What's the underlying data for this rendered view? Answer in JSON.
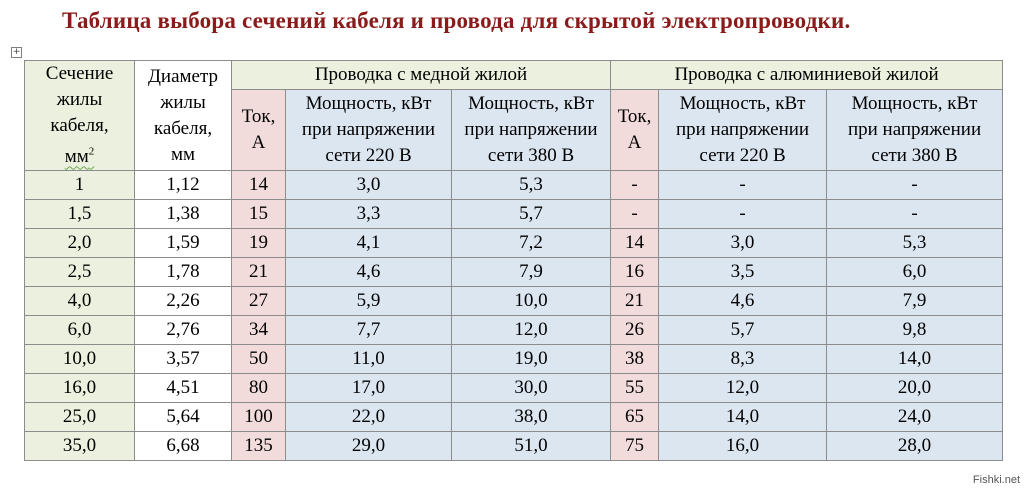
{
  "title": "Таблица выбора сечений кабеля и провода для скрытой электропроводки.",
  "watermark": "Fishki.net",
  "header": {
    "section": [
      "Сечение",
      "жилы",
      "кабеля,"
    ],
    "section_unit": "мм",
    "section_unit_sup": "2",
    "diameter": [
      "Диаметр",
      "жилы",
      "кабеля,",
      "мм"
    ],
    "copper_group": "Проводка с медной жилой",
    "aluminum_group": "Проводка с алюминиевой жилой",
    "current": [
      "Ток,",
      "А"
    ],
    "power_220": [
      "Мощность, кВт",
      "при напряжении",
      "сети 220 В"
    ],
    "power_380": [
      "Мощность, кВт",
      "при напряжении",
      "сети 380 В"
    ]
  },
  "rows": [
    {
      "section": "1",
      "diameter": "1,12",
      "cu_current": "14",
      "cu_p220": "3,0",
      "cu_p380": "5,3",
      "al_current": "-",
      "al_p220": "-",
      "al_p380": "-"
    },
    {
      "section": "1,5",
      "diameter": "1,38",
      "cu_current": "15",
      "cu_p220": "3,3",
      "cu_p380": "5,7",
      "al_current": "-",
      "al_p220": "-",
      "al_p380": "-"
    },
    {
      "section": "2,0",
      "diameter": "1,59",
      "cu_current": "19",
      "cu_p220": "4,1",
      "cu_p380": "7,2",
      "al_current": "14",
      "al_p220": "3,0",
      "al_p380": "5,3"
    },
    {
      "section": "2,5",
      "diameter": "1,78",
      "cu_current": "21",
      "cu_p220": "4,6",
      "cu_p380": "7,9",
      "al_current": "16",
      "al_p220": "3,5",
      "al_p380": "6,0"
    },
    {
      "section": "4,0",
      "diameter": "2,26",
      "cu_current": "27",
      "cu_p220": "5,9",
      "cu_p380": "10,0",
      "al_current": "21",
      "al_p220": "4,6",
      "al_p380": "7,9"
    },
    {
      "section": "6,0",
      "diameter": "2,76",
      "cu_current": "34",
      "cu_p220": "7,7",
      "cu_p380": "12,0",
      "al_current": "26",
      "al_p220": "5,7",
      "al_p380": "9,8"
    },
    {
      "section": "10,0",
      "diameter": "3,57",
      "cu_current": "50",
      "cu_p220": "11,0",
      "cu_p380": "19,0",
      "al_current": "38",
      "al_p220": "8,3",
      "al_p380": "14,0"
    },
    {
      "section": "16,0",
      "diameter": "4,51",
      "cu_current": "80",
      "cu_p220": "17,0",
      "cu_p380": "30,0",
      "al_current": "55",
      "al_p220": "12,0",
      "al_p380": "20,0"
    },
    {
      "section": "25,0",
      "diameter": "5,64",
      "cu_current": "100",
      "cu_p220": "22,0",
      "cu_p380": "38,0",
      "al_current": "65",
      "al_p220": "14,0",
      "al_p380": "24,0"
    },
    {
      "section": "35,0",
      "diameter": "6,68",
      "cu_current": "135",
      "cu_p220": "29,0",
      "cu_p380": "51,0",
      "al_current": "75",
      "al_p220": "16,0",
      "al_p380": "28,0"
    }
  ]
}
